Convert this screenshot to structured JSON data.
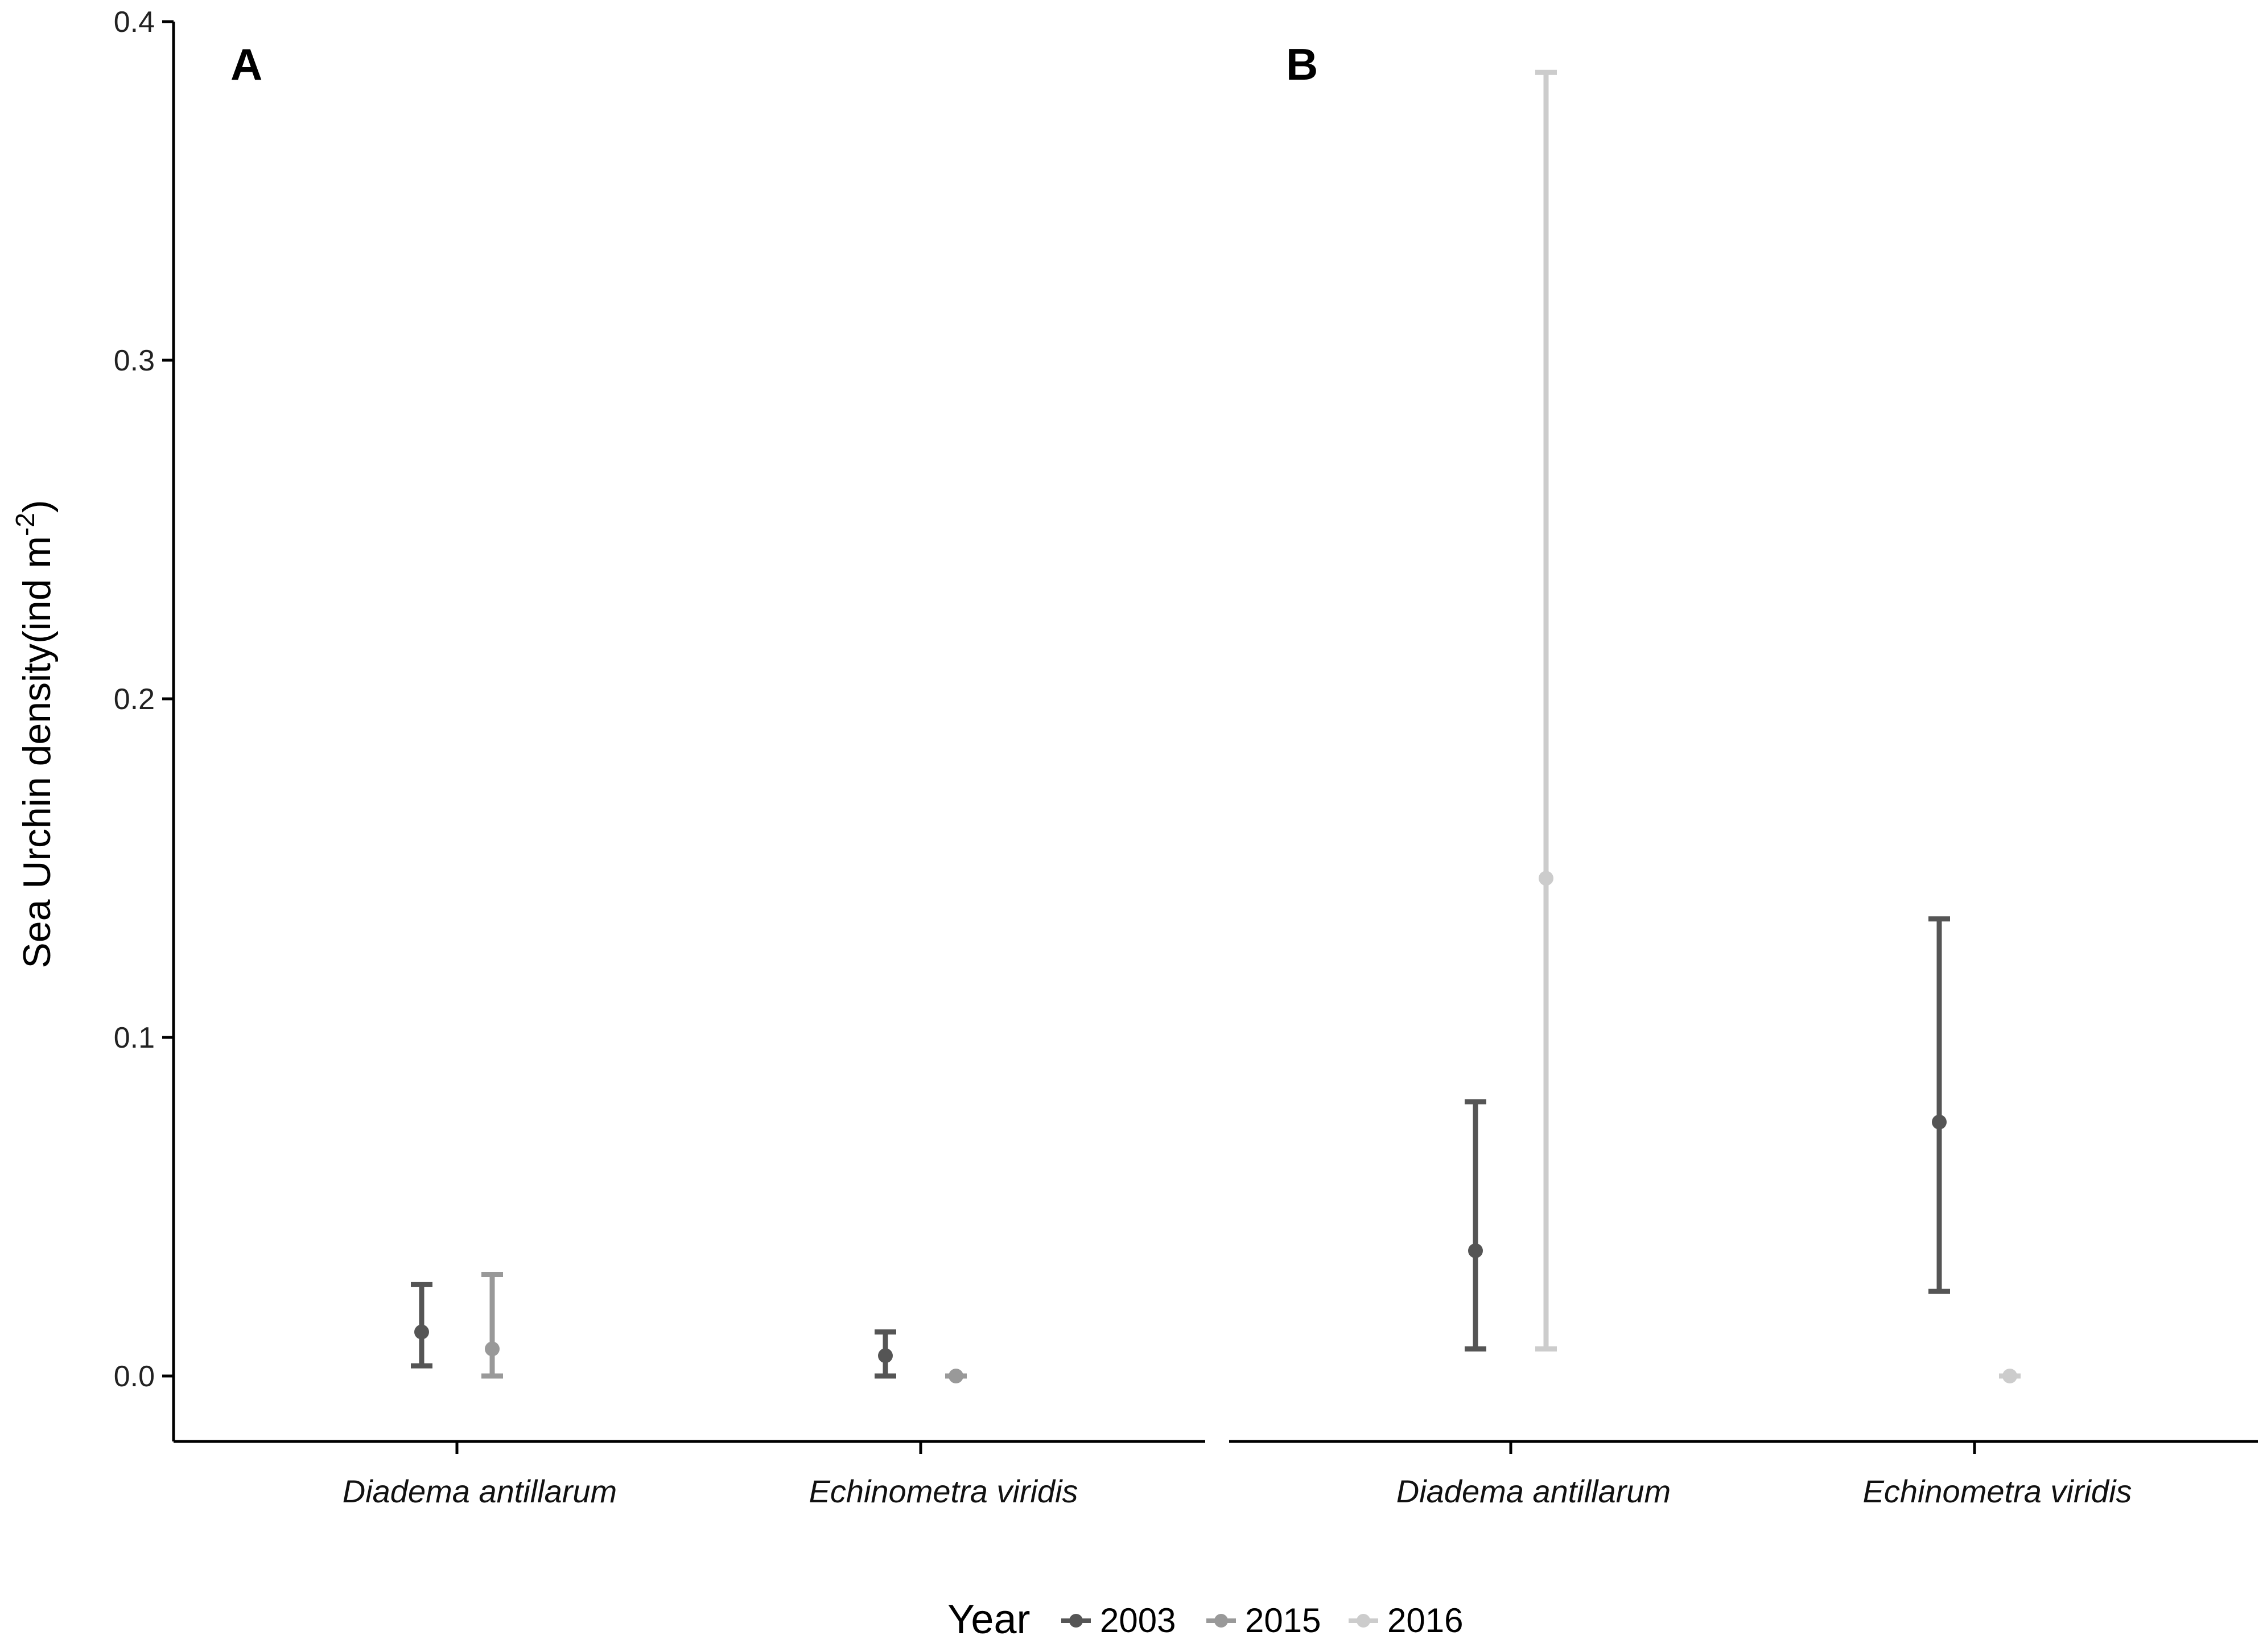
{
  "chart_data": {
    "type": "scatter",
    "ylabel": "Sea Urchin density(ind m",
    "ylabel_sup": "-2",
    "ylabel_close": ")",
    "ylim": [
      -0.019,
      0.4
    ],
    "yticks": [
      "0.0",
      "0.1",
      "0.2",
      "0.3",
      "0.4"
    ],
    "categories": [
      "Diadema antillarum",
      "Echinometra viridis"
    ],
    "legend": {
      "title": "Year",
      "position": "bottom",
      "items": [
        {
          "label": "2003",
          "color": "#555555"
        },
        {
          "label": "2015",
          "color": "#999999"
        },
        {
          "label": "2016",
          "color": "#cccccc"
        }
      ]
    },
    "panels": [
      {
        "label": "A",
        "series": [
          {
            "name": "2003",
            "color": "#555555",
            "points": [
              {
                "category": "Diadema antillarum",
                "mean": 0.013,
                "low": 0.003,
                "high": 0.027
              },
              {
                "category": "Echinometra viridis",
                "mean": 0.006,
                "low": 0.0,
                "high": 0.013
              }
            ]
          },
          {
            "name": "2015",
            "color": "#999999",
            "points": [
              {
                "category": "Diadema antillarum",
                "mean": 0.008,
                "low": 0.0,
                "high": 0.03
              },
              {
                "category": "Echinometra viridis",
                "mean": 0.0,
                "low": 0.0,
                "high": 0.0
              }
            ]
          }
        ]
      },
      {
        "label": "B",
        "series": [
          {
            "name": "2003",
            "color": "#555555",
            "points": [
              {
                "category": "Diadema antillarum",
                "mean": 0.037,
                "low": 0.008,
                "high": 0.081
              },
              {
                "category": "Echinometra viridis",
                "mean": 0.075,
                "low": 0.025,
                "high": 0.135
              }
            ]
          },
          {
            "name": "2016",
            "color": "#cccccc",
            "points": [
              {
                "category": "Diadema antillarum",
                "mean": 0.147,
                "low": 0.008,
                "high": 0.385
              },
              {
                "category": "Echinometra viridis",
                "mean": 0.0,
                "low": 0.0,
                "high": 0.0
              }
            ]
          }
        ]
      }
    ]
  }
}
